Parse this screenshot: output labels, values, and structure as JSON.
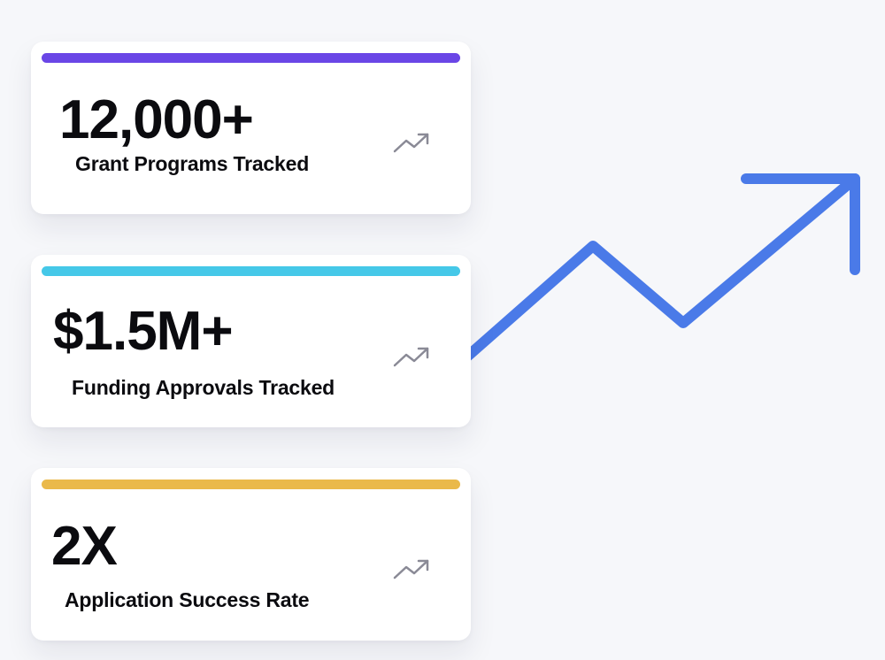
{
  "stats": [
    {
      "value": "12,000+",
      "label": "Grant Programs Tracked",
      "accent_color": "#6a46e6",
      "icon": "trending-up-icon"
    },
    {
      "value": "$1.5M+",
      "label": "Funding Approvals Tracked",
      "accent_color": "#45c8e8",
      "icon": "trending-up-icon"
    },
    {
      "value": "2X",
      "label": "Application Success Rate",
      "accent_color": "#eab94a",
      "icon": "trending-up-icon"
    }
  ],
  "colors": {
    "background": "#f6f7fa",
    "card_background": "#ffffff",
    "trend_arrow": "#4a7ae8",
    "icon_gray": "#8a8a96",
    "text": "#0b0b0f"
  }
}
